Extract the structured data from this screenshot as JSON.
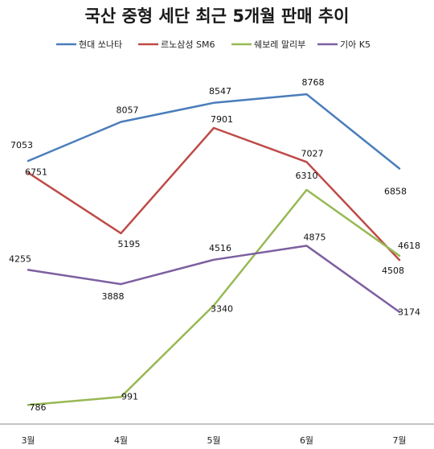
{
  "chart_data": {
    "type": "line",
    "title": "국산 중형 세단 최근 5개월 판매 추이",
    "categories": [
      "3월",
      "4월",
      "5월",
      "6월",
      "7월"
    ],
    "series": [
      {
        "name": "현대 쏘나타",
        "color": "#4a7ebb",
        "values": [
          7053,
          8057,
          8547,
          8768,
          6858
        ]
      },
      {
        "name": "르노삼성 SM6",
        "color": "#be4b48",
        "values": [
          6751,
          5195,
          7901,
          7027,
          4508
        ]
      },
      {
        "name": "쉐보레 말리부",
        "color": "#98b954",
        "values": [
          786,
          991,
          3340,
          6310,
          4618
        ]
      },
      {
        "name": "기아 K5",
        "color": "#7d5fa0",
        "values": [
          4255,
          3888,
          4516,
          4875,
          3174
        ]
      }
    ],
    "ylim": [
      0,
      10000
    ],
    "grid": false,
    "legend_position": "top"
  }
}
